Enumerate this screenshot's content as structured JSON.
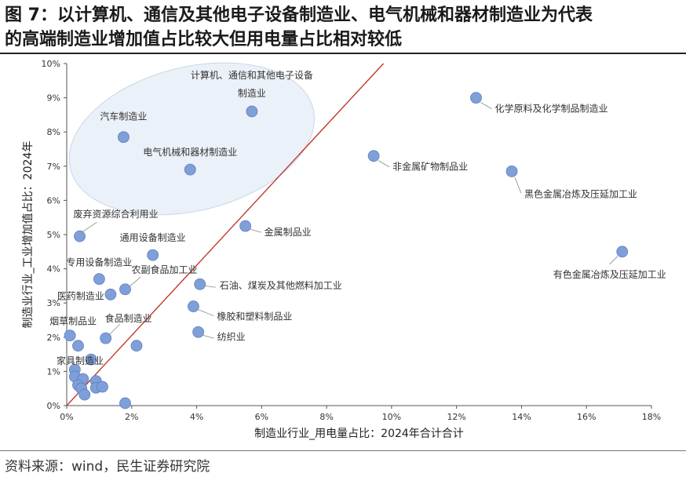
{
  "header": {
    "title_line1": "图 7：以计算机、通信及其他电子设备制造业、电气机械和器材制造业为代表",
    "title_line2": "的高端制造业增加值占比较大但用电量占比相对较低"
  },
  "footer": {
    "source": "资料来源：wind，民生证券研究院"
  },
  "colors": {
    "point": "#7f9fd8",
    "point_stroke": "#5f80c0",
    "diagonal": "#c0392b",
    "ellipse_fill": "#dbe6f2",
    "ellipse_stroke": "#c9d7e8"
  },
  "chart_data": {
    "type": "scatter",
    "title": "",
    "xlabel": "制造业行业_用电量占比：2024年合计合计",
    "ylabel": "制造业行业_工业增加值占比：2024年",
    "xlim": [
      0,
      18
    ],
    "ylim": [
      0,
      10
    ],
    "x_ticks": [
      "0%",
      "2%",
      "4%",
      "6%",
      "8%",
      "10%",
      "12%",
      "14%",
      "16%",
      "18%"
    ],
    "y_ticks": [
      "0%",
      "1%",
      "2%",
      "3%",
      "4%",
      "5%",
      "6%",
      "7%",
      "8%",
      "9%",
      "10%"
    ],
    "reference_line": {
      "x": [
        0,
        9.75
      ],
      "y": [
        0,
        10
      ]
    },
    "highlight_ellipse": {
      "cx": 3.85,
      "cy": 7.8,
      "rx": 7.7,
      "ry": 2.1,
      "angle_deg": -14
    },
    "points": [
      {
        "x": 5.7,
        "y": 8.6,
        "label": "计算机、通信和其他电子设备|制造业"
      },
      {
        "x": 12.6,
        "y": 9.0,
        "label": "化学原料及化学制品制造业"
      },
      {
        "x": 1.75,
        "y": 7.85,
        "label": "汽车制造业"
      },
      {
        "x": 9.45,
        "y": 7.3,
        "label": "非金属矿物制品业"
      },
      {
        "x": 3.8,
        "y": 6.9,
        "label": "电气机械和器材制造业"
      },
      {
        "x": 13.7,
        "y": 6.85,
        "label": "黑色金属冶炼及压延加工业"
      },
      {
        "x": 0.4,
        "y": 4.95,
        "label": "废弃资源综合利用业"
      },
      {
        "x": 5.5,
        "y": 5.25,
        "label": "金属制品业"
      },
      {
        "x": 17.1,
        "y": 4.5,
        "label": "有色金属冶炼及压延加工业"
      },
      {
        "x": 2.65,
        "y": 4.4,
        "label": "通用设备制造业"
      },
      {
        "x": 1.0,
        "y": 3.7,
        "label": "专用设备制造业"
      },
      {
        "x": 1.8,
        "y": 3.4,
        "label": "农副食品加工业"
      },
      {
        "x": 4.1,
        "y": 3.55,
        "label": "石油、煤炭及其他燃料加工业"
      },
      {
        "x": 1.35,
        "y": 3.25,
        "label": "医药制造业"
      },
      {
        "x": 3.9,
        "y": 2.9,
        "label": "橡胶和塑料制品业"
      },
      {
        "x": 0.1,
        "y": 2.05,
        "label": "烟草制品业"
      },
      {
        "x": 1.2,
        "y": 1.97,
        "label": "食品制造业"
      },
      {
        "x": 4.05,
        "y": 2.15,
        "label": "纺织业"
      },
      {
        "x": 0.35,
        "y": 1.75,
        "label": ""
      },
      {
        "x": 2.15,
        "y": 1.75,
        "label": ""
      },
      {
        "x": 0.75,
        "y": 1.35,
        "label": "家具制造业"
      },
      {
        "x": 0.25,
        "y": 1.05,
        "label": ""
      },
      {
        "x": 0.25,
        "y": 0.85,
        "label": ""
      },
      {
        "x": 0.5,
        "y": 0.78,
        "label": ""
      },
      {
        "x": 0.9,
        "y": 0.72,
        "label": ""
      },
      {
        "x": 0.35,
        "y": 0.6,
        "label": ""
      },
      {
        "x": 0.45,
        "y": 0.5,
        "label": ""
      },
      {
        "x": 0.9,
        "y": 0.52,
        "label": ""
      },
      {
        "x": 1.1,
        "y": 0.55,
        "label": ""
      },
      {
        "x": 0.55,
        "y": 0.32,
        "label": ""
      },
      {
        "x": 1.8,
        "y": 0.07,
        "label": ""
      }
    ]
  }
}
